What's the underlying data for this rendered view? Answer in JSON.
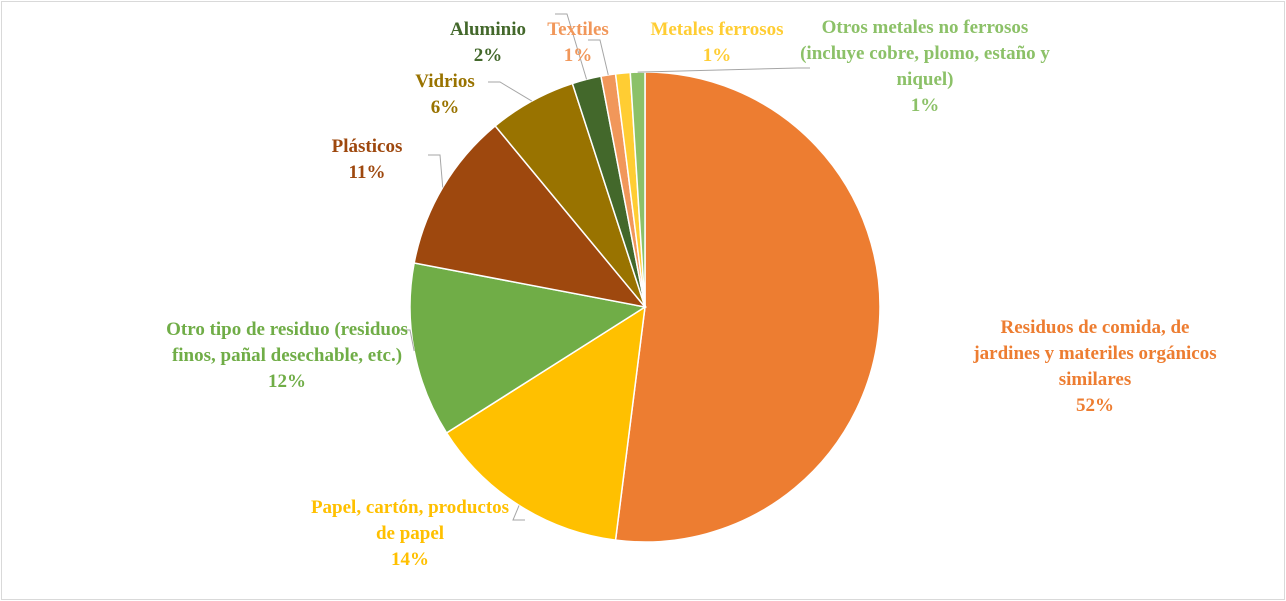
{
  "chart_data": {
    "type": "pie",
    "categories": [
      "Residuos de comida, de jardines y materiles orgánicos similares",
      "Papel, cartón, productos de papel",
      "Otro tipo de residuo (residuos finos, pañal desechable, etc.)",
      "Plásticos",
      "Vidrios",
      "Aluminio",
      "Textiles",
      "Metales ferrosos",
      "Otros metales no ferrosos (incluye cobre, plomo, estaño y niquel)"
    ],
    "values": [
      52,
      14,
      12,
      11,
      6,
      2,
      1,
      1,
      1
    ],
    "value_labels": [
      "52%",
      "14%",
      "12%",
      "11%",
      "6%",
      "2%",
      "1%",
      "1%",
      "1%"
    ],
    "colors": [
      "#ED7D31",
      "#FFC000",
      "#70AD47",
      "#9E480E",
      "#997300",
      "#43682B",
      "#F1975A",
      "#FFCD33",
      "#8CC168"
    ]
  }
}
